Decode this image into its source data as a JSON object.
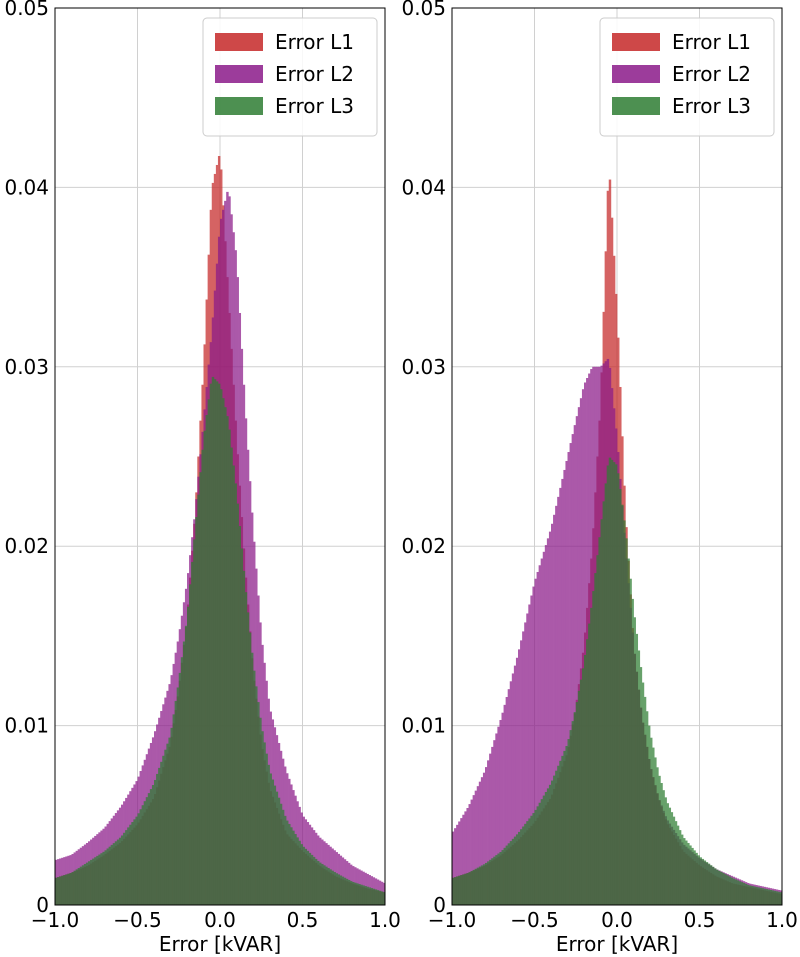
{
  "chart_data": [
    {
      "type": "histogram",
      "xlabel": "Error [kVAR]",
      "ylabel": "",
      "xlim": [
        -1.0,
        1.0
      ],
      "ylim": [
        0,
        0.05
      ],
      "xticks": [
        "−1.0",
        "−0.5",
        "0.0",
        "0.5",
        "1.0"
      ],
      "yticks": [
        "0",
        "0.01",
        "0.02",
        "0.03",
        "0.04",
        "0.05"
      ],
      "grid": true,
      "legend_position": "top-right",
      "series": [
        {
          "name": "Error L1",
          "color": "#c62828",
          "x": [
            -1.0,
            -0.9,
            -0.8,
            -0.7,
            -0.6,
            -0.5,
            -0.4,
            -0.3,
            -0.25,
            -0.2,
            -0.15,
            -0.1,
            -0.05,
            0.0,
            0.05,
            0.1,
            0.15,
            0.2,
            0.25,
            0.3,
            0.4,
            0.5,
            0.6,
            0.7,
            0.8,
            0.9,
            1.0
          ],
          "y": [
            0.0015,
            0.0018,
            0.0022,
            0.0028,
            0.0035,
            0.0045,
            0.006,
            0.009,
            0.012,
            0.016,
            0.022,
            0.03,
            0.04,
            0.042,
            0.034,
            0.026,
            0.019,
            0.013,
            0.009,
            0.0065,
            0.004,
            0.003,
            0.0022,
            0.0016,
            0.0012,
            0.0009,
            0.0007
          ]
        },
        {
          "name": "Error L2",
          "color": "#8b1a89",
          "x": [
            -1.0,
            -0.9,
            -0.8,
            -0.7,
            -0.6,
            -0.5,
            -0.4,
            -0.3,
            -0.25,
            -0.2,
            -0.15,
            -0.1,
            -0.05,
            0.0,
            0.05,
            0.1,
            0.15,
            0.2,
            0.25,
            0.3,
            0.4,
            0.5,
            0.6,
            0.7,
            0.8,
            0.9,
            1.0
          ],
          "y": [
            0.0025,
            0.0028,
            0.0035,
            0.0043,
            0.0055,
            0.007,
            0.0095,
            0.0125,
            0.015,
            0.018,
            0.022,
            0.027,
            0.032,
            0.038,
            0.04,
            0.036,
            0.028,
            0.021,
            0.015,
            0.011,
            0.0075,
            0.005,
            0.0038,
            0.003,
            0.0022,
            0.0017,
            0.0012
          ]
        },
        {
          "name": "Error L3",
          "color": "#2e7d32",
          "x": [
            -1.0,
            -0.9,
            -0.8,
            -0.7,
            -0.6,
            -0.5,
            -0.4,
            -0.3,
            -0.25,
            -0.2,
            -0.15,
            -0.1,
            -0.05,
            0.0,
            0.05,
            0.1,
            0.15,
            0.2,
            0.25,
            0.3,
            0.4,
            0.5,
            0.6,
            0.7,
            0.8,
            0.9,
            1.0
          ],
          "y": [
            0.0015,
            0.0018,
            0.0024,
            0.003,
            0.0038,
            0.005,
            0.0068,
            0.0095,
            0.0125,
            0.016,
            0.021,
            0.026,
            0.0295,
            0.029,
            0.027,
            0.023,
            0.018,
            0.0135,
            0.01,
            0.0075,
            0.0048,
            0.0033,
            0.0024,
            0.0018,
            0.0013,
            0.001,
            0.0007
          ]
        }
      ]
    },
    {
      "type": "histogram",
      "xlabel": "Error [kVAR]",
      "ylabel": "",
      "xlim": [
        -1.0,
        1.0
      ],
      "ylim": [
        0,
        0.05
      ],
      "xticks": [
        "−1.0",
        "−0.5",
        "0.0",
        "0.5",
        "1.0"
      ],
      "yticks": [
        "0",
        "0.01",
        "0.02",
        "0.03",
        "0.04",
        "0.05"
      ],
      "grid": true,
      "legend_position": "top-right",
      "series": [
        {
          "name": "Error L1",
          "color": "#c62828",
          "x": [
            -1.0,
            -0.9,
            -0.8,
            -0.7,
            -0.6,
            -0.5,
            -0.4,
            -0.3,
            -0.25,
            -0.2,
            -0.15,
            -0.1,
            -0.05,
            0.0,
            0.05,
            0.1,
            0.15,
            0.2,
            0.25,
            0.3,
            0.4,
            0.5,
            0.6,
            0.7,
            0.8,
            0.9,
            1.0
          ],
          "y": [
            0.0015,
            0.0018,
            0.0022,
            0.0028,
            0.0036,
            0.0046,
            0.006,
            0.0085,
            0.011,
            0.0145,
            0.02,
            0.028,
            0.0415,
            0.033,
            0.022,
            0.0145,
            0.0105,
            0.0078,
            0.006,
            0.0046,
            0.003,
            0.0022,
            0.0016,
            0.0012,
            0.001,
            0.0008,
            0.0006
          ]
        },
        {
          "name": "Error L2",
          "color": "#8b1a89",
          "x": [
            -1.0,
            -0.9,
            -0.8,
            -0.7,
            -0.6,
            -0.5,
            -0.4,
            -0.3,
            -0.25,
            -0.2,
            -0.15,
            -0.1,
            -0.05,
            0.0,
            0.05,
            0.1,
            0.15,
            0.2,
            0.25,
            0.3,
            0.4,
            0.5,
            0.6,
            0.7,
            0.8,
            0.9,
            1.0
          ],
          "y": [
            0.004,
            0.0055,
            0.0075,
            0.0105,
            0.014,
            0.018,
            0.021,
            0.025,
            0.027,
            0.029,
            0.03,
            0.03,
            0.0305,
            0.026,
            0.02,
            0.0145,
            0.0105,
            0.0078,
            0.006,
            0.0048,
            0.0034,
            0.0026,
            0.002,
            0.0016,
            0.0012,
            0.001,
            0.0008
          ]
        },
        {
          "name": "Error L3",
          "color": "#2e7d32",
          "x": [
            -1.0,
            -0.9,
            -0.8,
            -0.7,
            -0.6,
            -0.5,
            -0.4,
            -0.3,
            -0.25,
            -0.2,
            -0.15,
            -0.1,
            -0.05,
            0.0,
            0.05,
            0.1,
            0.15,
            0.2,
            0.25,
            0.3,
            0.4,
            0.5,
            0.6,
            0.7,
            0.8,
            0.9,
            1.0
          ],
          "y": [
            0.0015,
            0.0018,
            0.0023,
            0.003,
            0.004,
            0.0052,
            0.0068,
            0.009,
            0.011,
            0.0135,
            0.017,
            0.021,
            0.025,
            0.0245,
            0.021,
            0.0165,
            0.0128,
            0.0096,
            0.0074,
            0.0058,
            0.0038,
            0.0027,
            0.002,
            0.0015,
            0.0011,
            0.0009,
            0.0007
          ]
        }
      ]
    }
  ]
}
